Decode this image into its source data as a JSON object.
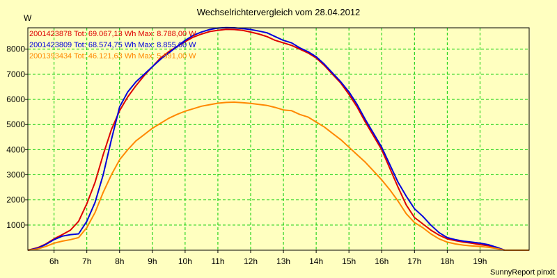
{
  "chart_data": {
    "type": "line",
    "title": "Wechselrichtervergleich vom 28.04.2012",
    "ylabel": "W",
    "footer": "SunnyReport pinxit",
    "background": "#ffffc0",
    "grid": true,
    "grid_color": "#00cc00",
    "legend_position": "top-left",
    "xlim": [
      5.2,
      20.5
    ],
    "ylim": [
      0,
      8850
    ],
    "x_ticks": [
      6,
      7,
      8,
      9,
      10,
      11,
      12,
      13,
      14,
      15,
      16,
      17,
      18,
      19
    ],
    "x_tick_labels": [
      "6h",
      "7h",
      "8h",
      "9h",
      "10h",
      "11h",
      "12h",
      "13h",
      "14h",
      "15h",
      "16h",
      "17h",
      "18h",
      "19h"
    ],
    "y_ticks": [
      1000,
      2000,
      3000,
      4000,
      5000,
      6000,
      7000,
      8000
    ],
    "y_tick_labels": [
      "1000",
      "2000",
      "3000",
      "4000",
      "5000",
      "6000",
      "7000",
      "8000"
    ],
    "series": [
      {
        "name": "2001423878",
        "label": "2001423878 Tot: 69.067,13 Wh Max: 8.788,00 W",
        "color": "#dd0000",
        "x": [
          5.2,
          5.5,
          5.75,
          6.0,
          6.25,
          6.5,
          6.75,
          7.0,
          7.25,
          7.5,
          7.75,
          8.0,
          8.25,
          8.5,
          8.75,
          9.0,
          9.25,
          9.5,
          9.75,
          10.0,
          10.25,
          10.5,
          10.75,
          11.0,
          11.25,
          11.5,
          11.75,
          12.0,
          12.25,
          12.5,
          12.75,
          13.0,
          13.25,
          13.5,
          13.75,
          14.0,
          14.25,
          14.5,
          14.75,
          15.0,
          15.25,
          15.5,
          15.75,
          16.0,
          16.25,
          16.5,
          16.75,
          17.0,
          17.25,
          17.5,
          17.75,
          18.0,
          18.25,
          18.5,
          18.75,
          19.0,
          19.25,
          19.5,
          19.75,
          20.0,
          20.5
        ],
        "y": [
          0,
          100,
          250,
          450,
          620,
          800,
          1150,
          1850,
          2700,
          3800,
          4800,
          5550,
          6100,
          6550,
          6950,
          7300,
          7650,
          7900,
          8100,
          8300,
          8480,
          8600,
          8700,
          8750,
          8788,
          8780,
          8750,
          8680,
          8600,
          8500,
          8350,
          8250,
          8150,
          8000,
          7850,
          7650,
          7350,
          7000,
          6650,
          6200,
          5700,
          5100,
          4550,
          4000,
          3250,
          2500,
          1800,
          1300,
          1050,
          800,
          600,
          450,
          380,
          320,
          280,
          220,
          180,
          120,
          0,
          0,
          0
        ]
      },
      {
        "name": "2001423809",
        "label": "2001423809 Tot: 68.574,75 Wh Max: 8.855,00 W",
        "color": "#0000dd",
        "x": [
          5.2,
          5.5,
          5.75,
          6.0,
          6.25,
          6.5,
          6.75,
          7.0,
          7.25,
          7.5,
          7.75,
          8.0,
          8.25,
          8.5,
          8.75,
          9.0,
          9.25,
          9.5,
          9.75,
          10.0,
          10.25,
          10.5,
          10.75,
          11.0,
          11.25,
          11.5,
          11.75,
          12.0,
          12.25,
          12.5,
          12.75,
          13.0,
          13.25,
          13.5,
          13.75,
          14.0,
          14.25,
          14.5,
          14.75,
          15.0,
          15.25,
          15.5,
          15.75,
          16.0,
          16.25,
          16.5,
          16.75,
          17.0,
          17.25,
          17.5,
          17.75,
          18.0,
          18.25,
          18.5,
          18.75,
          19.0,
          19.25,
          19.5,
          19.75,
          20.0,
          20.5
        ],
        "y": [
          0,
          80,
          230,
          420,
          560,
          620,
          650,
          1150,
          1900,
          3000,
          4400,
          5700,
          6300,
          6700,
          7000,
          7300,
          7600,
          7850,
          8100,
          8350,
          8550,
          8680,
          8780,
          8840,
          8855,
          8850,
          8820,
          8780,
          8720,
          8650,
          8500,
          8350,
          8250,
          8050,
          7900,
          7700,
          7400,
          7050,
          6700,
          6300,
          5800,
          5200,
          4650,
          4100,
          3400,
          2700,
          2150,
          1650,
          1350,
          1000,
          700,
          500,
          420,
          360,
          320,
          280,
          220,
          120,
          0,
          0,
          0
        ]
      },
      {
        "name": "2001393434",
        "label": "2001393434 Tot: 46.121,63 Wh Max: 5.891,00 W",
        "color": "#ff8800",
        "x": [
          5.2,
          5.5,
          5.75,
          6.0,
          6.25,
          6.5,
          6.75,
          7.0,
          7.25,
          7.5,
          7.75,
          8.0,
          8.25,
          8.5,
          8.75,
          9.0,
          9.25,
          9.5,
          9.75,
          10.0,
          10.25,
          10.5,
          10.75,
          11.0,
          11.25,
          11.5,
          11.75,
          12.0,
          12.25,
          12.5,
          12.75,
          13.0,
          13.25,
          13.5,
          13.75,
          14.0,
          14.25,
          14.5,
          14.75,
          15.0,
          15.25,
          15.5,
          15.75,
          16.0,
          16.25,
          16.5,
          16.75,
          17.0,
          17.25,
          17.5,
          17.75,
          18.0,
          18.25,
          18.5,
          18.75,
          19.0,
          19.25,
          19.5,
          19.75,
          20.0,
          20.5
        ],
        "y": [
          0,
          50,
          150,
          280,
          360,
          420,
          500,
          900,
          1500,
          2300,
          3000,
          3600,
          4000,
          4350,
          4600,
          4850,
          5050,
          5250,
          5400,
          5530,
          5630,
          5730,
          5790,
          5850,
          5880,
          5891,
          5870,
          5840,
          5800,
          5760,
          5680,
          5580,
          5550,
          5400,
          5300,
          5100,
          4900,
          4650,
          4400,
          4100,
          3800,
          3500,
          3150,
          2800,
          2400,
          1950,
          1450,
          1100,
          900,
          650,
          450,
          320,
          250,
          200,
          170,
          150,
          120,
          70,
          0,
          0,
          0
        ]
      }
    ]
  }
}
